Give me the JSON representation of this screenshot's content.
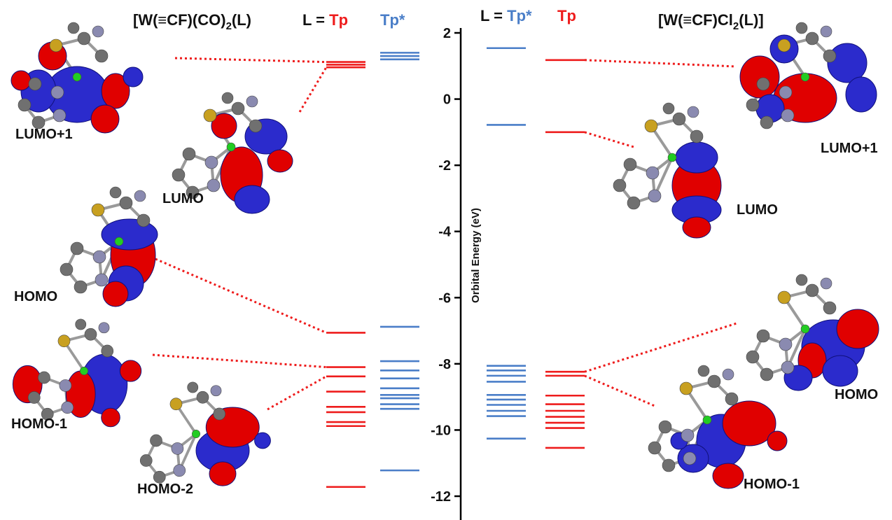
{
  "chart_data": {
    "type": "line",
    "description_type": "orbital-energy-level-diagram",
    "ylabel": "Orbital Energy (eV)",
    "ylim": [
      -12.7,
      2.2
    ],
    "y_ticks": [
      2,
      0,
      -2,
      -4,
      -6,
      -8,
      -10,
      -12
    ],
    "colors": {
      "Tp": "#ee1c1c",
      "Tp*": "#4a7ec8",
      "axis": "#000000"
    },
    "left_panel": {
      "title_main": "[W(≡CF)(CO)",
      "title_sub": "2",
      "title_tail": "(L)",
      "ligand_prefix": "L = ",
      "series": [
        {
          "name": "Tp",
          "values": [
            1.12,
            1.04,
            0.96,
            -7.06,
            -8.1,
            -8.38,
            -8.84,
            -9.3,
            -9.46,
            -9.76,
            -9.88,
            -11.72
          ]
        },
        {
          "name": "Tp*",
          "values": [
            1.4,
            1.3,
            1.2,
            -6.88,
            -7.92,
            -8.2,
            -8.44,
            -8.74,
            -8.94,
            -9.04,
            -9.22,
            -9.36,
            -11.22
          ]
        }
      ],
      "orbital_labels": [
        "LUMO+1",
        "LUMO",
        "HOMO",
        "HOMO-1",
        "HOMO-2"
      ],
      "connectors": [
        {
          "label": "LUMO+1",
          "level": 1.12
        },
        {
          "label": "LUMO",
          "level": 0.96
        },
        {
          "label": "HOMO",
          "level": -7.06
        },
        {
          "label": "HOMO-1",
          "level": -8.1
        },
        {
          "label": "HOMO-2",
          "level": -8.38
        }
      ]
    },
    "right_panel": {
      "title_main": "[W(≡CF)Cl",
      "title_sub": "2",
      "title_tail": "(L)]",
      "ligand_prefix": "L = ",
      "series": [
        {
          "name": "Tp*",
          "values": [
            1.54,
            -0.78,
            -8.06,
            -8.2,
            -8.36,
            -8.54,
            -8.94,
            -9.08,
            -9.24,
            -9.42,
            -9.58,
            -10.26
          ]
        },
        {
          "name": "Tp",
          "values": [
            1.18,
            -1.0,
            -8.24,
            -8.36,
            -8.96,
            -9.22,
            -9.42,
            -9.6,
            -9.78,
            -9.94,
            -10.54
          ]
        }
      ],
      "orbital_labels": [
        "LUMO+1",
        "LUMO",
        "HOMO",
        "HOMO-1"
      ],
      "connectors": [
        {
          "label": "LUMO+1",
          "level": 1.18
        },
        {
          "label": "LUMO",
          "level": -1.0
        },
        {
          "label": "HOMO",
          "level": -8.24
        },
        {
          "label": "HOMO-1",
          "level": -8.36
        }
      ]
    }
  }
}
